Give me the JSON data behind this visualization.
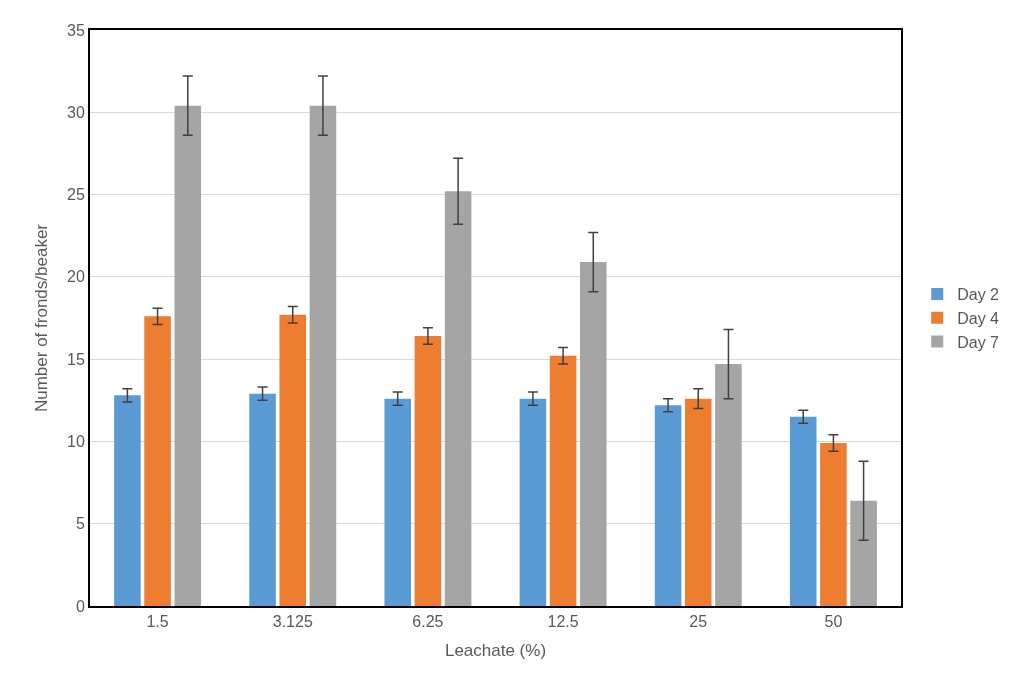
{
  "chart_data": {
    "type": "bar",
    "xlabel": "Leachate (%)",
    "ylabel": "Number of fronds/beaker",
    "categories": [
      "1.5",
      "3.125",
      "6.25",
      "12.5",
      "25",
      "50"
    ],
    "series": [
      {
        "name": "Day 2",
        "color": "#5b9bd5",
        "values": [
          12.8,
          12.9,
          12.6,
          12.6,
          12.2,
          11.5
        ],
        "errors": [
          0.4,
          0.4,
          0.4,
          0.4,
          0.4,
          0.4
        ]
      },
      {
        "name": "Day 4",
        "color": "#ed7d31",
        "values": [
          17.6,
          17.7,
          16.4,
          15.2,
          12.6,
          9.9
        ],
        "errors": [
          0.5,
          0.5,
          0.5,
          0.5,
          0.6,
          0.5
        ]
      },
      {
        "name": "Day 7",
        "color": "#a5a5a5",
        "values": [
          30.4,
          30.4,
          25.2,
          20.9,
          14.7,
          6.4
        ],
        "errors": [
          1.8,
          1.8,
          2.0,
          1.8,
          2.1,
          2.4
        ]
      }
    ],
    "ylim": [
      0,
      35
    ],
    "yticks": [
      0,
      5,
      10,
      15,
      20,
      25,
      30,
      35
    ],
    "grid": "y",
    "legend": "right"
  }
}
